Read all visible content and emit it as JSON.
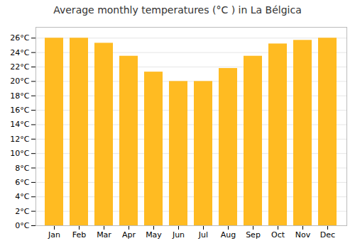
{
  "chart_data": {
    "type": "bar",
    "title": "Average monthly temperatures (°C ) in La Bélgica",
    "categories": [
      "Jan",
      "Feb",
      "Mar",
      "Apr",
      "May",
      "Jun",
      "Jul",
      "Aug",
      "Sep",
      "Oct",
      "Nov",
      "Dec"
    ],
    "values": [
      26,
      26,
      25.3,
      23.5,
      21.3,
      20,
      20,
      21.8,
      23.5,
      25.2,
      25.7,
      26
    ],
    "color": "#FFBB22",
    "ylim": [
      0,
      27.5
    ],
    "yticks": [
      {
        "value": 0,
        "label": "0°C"
      },
      {
        "value": 2,
        "label": "2°C"
      },
      {
        "value": 4,
        "label": "4°C"
      },
      {
        "value": 6,
        "label": "6°C"
      },
      {
        "value": 8,
        "label": "8°C"
      },
      {
        "value": 10,
        "label": "10°C"
      },
      {
        "value": 12,
        "label": "12°C"
      },
      {
        "value": 14,
        "label": "14°C"
      },
      {
        "value": 16,
        "label": "16°C"
      },
      {
        "value": 18,
        "label": "18°C"
      },
      {
        "value": 20,
        "label": "20°C"
      },
      {
        "value": 22,
        "label": "22°C"
      },
      {
        "value": 24,
        "label": "24°C"
      },
      {
        "value": 26,
        "label": "26°C"
      }
    ],
    "grid": true
  }
}
